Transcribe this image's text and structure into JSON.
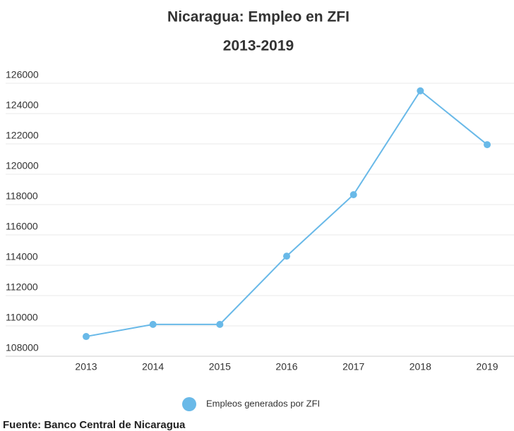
{
  "chart_data": {
    "type": "line",
    "title": "Nicaragua: Empleo en ZFI",
    "subtitle": "2013-2019",
    "categories": [
      "2013",
      "2014",
      "2015",
      "2016",
      "2017",
      "2018",
      "2019"
    ],
    "series": [
      {
        "name": "Empleos generados por ZFI",
        "color": "#69b9e8",
        "values": [
          109300,
          110100,
          110100,
          114600,
          118650,
          125500,
          121950
        ]
      }
    ],
    "ylim": [
      108000,
      126000
    ],
    "yticks": [
      108000,
      110000,
      112000,
      114000,
      116000,
      118000,
      120000,
      122000,
      124000,
      126000
    ],
    "grid": true,
    "legend": "bottom",
    "source": "Fuente: Banco Central de Nicaragua"
  }
}
